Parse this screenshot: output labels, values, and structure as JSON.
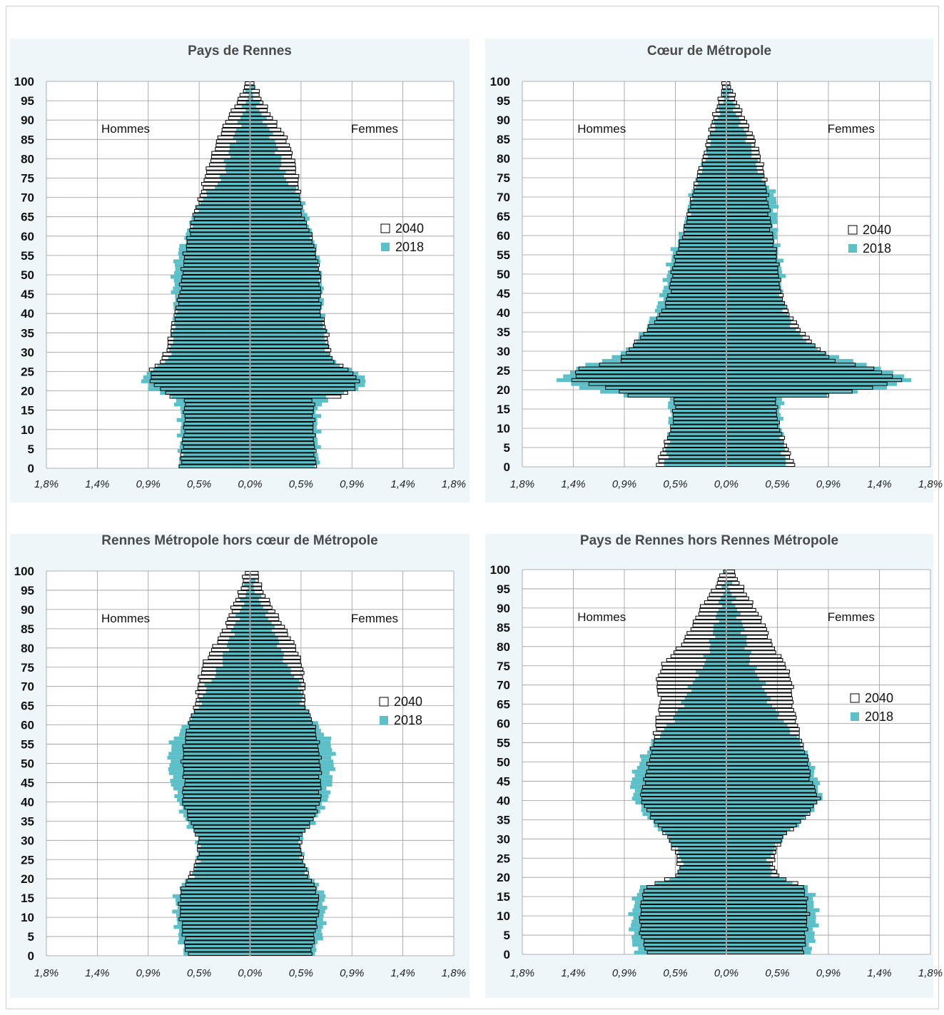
{
  "colors": {
    "series_2018": "#5bc0c8",
    "series_2040_fill": "#ffffff",
    "series_2040_stroke": "#000000",
    "panel_bg": "#eef6fa",
    "grid": "#9a9a9a",
    "axis_center": "#9a9a9a",
    "title": "#4a4a4a"
  },
  "chart_data": [
    {
      "type": "bar",
      "title": "Pays de Rennes",
      "left_label": "Hommes",
      "right_label": "Femmes",
      "legend": [
        "2040",
        "2018"
      ],
      "y_ticks": [
        "0",
        "5",
        "10",
        "15",
        "20",
        "25",
        "30",
        "35",
        "40",
        "45",
        "50",
        "55",
        "60",
        "65",
        "70",
        "75",
        "80",
        "85",
        "90",
        "95",
        "100"
      ],
      "x_ticks": [
        "1,8%",
        "1,4%",
        "0,9%",
        "0,5%",
        "0,0%",
        "0,5%",
        "0,9%",
        "1,4%",
        "1,8%"
      ],
      "xlim": [
        -1.8,
        1.8
      ],
      "ylim": [
        0,
        100
      ],
      "series": [
        {
          "name": "2018",
          "age": [
            0,
            10,
            15,
            18,
            20,
            22,
            25,
            27,
            30,
            35,
            40,
            45,
            50,
            55,
            60,
            65,
            70,
            72,
            75,
            80,
            85,
            90,
            95,
            100
          ],
          "male": [
            0.62,
            0.62,
            0.62,
            0.7,
            0.88,
            0.96,
            0.88,
            0.74,
            0.7,
            0.68,
            0.66,
            0.68,
            0.68,
            0.64,
            0.56,
            0.5,
            0.4,
            0.32,
            0.24,
            0.2,
            0.14,
            0.08,
            0.03,
            0.0
          ],
          "female": [
            0.6,
            0.6,
            0.6,
            0.7,
            0.95,
            1.05,
            0.9,
            0.74,
            0.68,
            0.66,
            0.64,
            0.64,
            0.62,
            0.6,
            0.54,
            0.5,
            0.44,
            0.38,
            0.3,
            0.26,
            0.2,
            0.12,
            0.04,
            0.0
          ]
        },
        {
          "name": "2040",
          "age": [
            0,
            10,
            15,
            17,
            18,
            20,
            22,
            25,
            27,
            30,
            35,
            40,
            45,
            50,
            55,
            60,
            65,
            70,
            75,
            80,
            85,
            90,
            95,
            100
          ],
          "male": [
            0.62,
            0.58,
            0.58,
            0.58,
            0.7,
            0.8,
            0.88,
            0.88,
            0.8,
            0.74,
            0.7,
            0.66,
            0.62,
            0.6,
            0.58,
            0.54,
            0.5,
            0.44,
            0.4,
            0.34,
            0.28,
            0.2,
            0.1,
            0.02
          ],
          "female": [
            0.58,
            0.56,
            0.56,
            0.56,
            0.8,
            0.92,
            0.96,
            0.88,
            0.74,
            0.7,
            0.68,
            0.62,
            0.62,
            0.62,
            0.58,
            0.54,
            0.46,
            0.44,
            0.42,
            0.38,
            0.32,
            0.2,
            0.1,
            0.02
          ]
        }
      ]
    },
    {
      "type": "bar",
      "title": "Cœur de Métropole",
      "left_label": "Hommes",
      "right_label": "Femmes",
      "legend": [
        "2040",
        "2018"
      ],
      "y_ticks": [
        "0",
        "5",
        "10",
        "15",
        "20",
        "25",
        "30",
        "35",
        "40",
        "45",
        "50",
        "55",
        "60",
        "65",
        "70",
        "75",
        "80",
        "85",
        "90",
        "95",
        "100"
      ],
      "x_ticks": [
        "1,8%",
        "1,4%",
        "0,9%",
        "0,5%",
        "0,0%",
        "0,5%",
        "0,9%",
        "1,4%",
        "1,8%"
      ],
      "xlim": [
        -1.8,
        1.8
      ],
      "ylim": [
        0,
        100
      ],
      "series": [
        {
          "name": "2018",
          "age": [
            0,
            10,
            15,
            17,
            18,
            20,
            22,
            25,
            27,
            30,
            35,
            40,
            45,
            50,
            55,
            60,
            65,
            70,
            72,
            75,
            80,
            85,
            90,
            95,
            100
          ],
          "male": [
            0.54,
            0.5,
            0.5,
            0.52,
            0.9,
            1.3,
            1.48,
            1.34,
            1.1,
            0.86,
            0.72,
            0.62,
            0.56,
            0.52,
            0.48,
            0.4,
            0.34,
            0.32,
            0.28,
            0.24,
            0.18,
            0.14,
            0.08,
            0.03,
            0.0
          ],
          "female": [
            0.52,
            0.48,
            0.48,
            0.5,
            0.9,
            1.4,
            1.64,
            1.38,
            1.1,
            0.8,
            0.6,
            0.52,
            0.48,
            0.5,
            0.46,
            0.44,
            0.44,
            0.44,
            0.38,
            0.3,
            0.24,
            0.18,
            0.1,
            0.04,
            0.0
          ]
        },
        {
          "name": "2040",
          "age": [
            0,
            10,
            15,
            17,
            18,
            20,
            22,
            25,
            27,
            30,
            35,
            40,
            45,
            50,
            55,
            60,
            65,
            70,
            75,
            80,
            85,
            90,
            95,
            100
          ],
          "male": [
            0.62,
            0.48,
            0.46,
            0.46,
            0.86,
            1.06,
            1.36,
            1.3,
            0.94,
            0.86,
            0.7,
            0.56,
            0.5,
            0.48,
            0.44,
            0.38,
            0.34,
            0.3,
            0.26,
            0.2,
            0.16,
            0.12,
            0.06,
            0.02
          ],
          "female": [
            0.6,
            0.46,
            0.44,
            0.44,
            0.9,
            1.3,
            1.54,
            1.3,
            0.96,
            0.82,
            0.66,
            0.54,
            0.48,
            0.46,
            0.44,
            0.4,
            0.38,
            0.36,
            0.34,
            0.3,
            0.24,
            0.16,
            0.08,
            0.02
          ]
        }
      ]
    },
    {
      "type": "bar",
      "title": "Rennes Métropole hors cœur de Métropole",
      "left_label": "Hommes",
      "right_label": "Femmes",
      "legend": [
        "2040",
        "2018"
      ],
      "y_ticks": [
        "0",
        "5",
        "10",
        "15",
        "20",
        "25",
        "30",
        "35",
        "40",
        "45",
        "50",
        "55",
        "60",
        "65",
        "70",
        "75",
        "80",
        "85",
        "90",
        "95",
        "100"
      ],
      "x_ticks": [
        "1,8%",
        "1,4%",
        "0,9%",
        "0,5%",
        "0,0%",
        "0,5%",
        "0,9%",
        "1,4%",
        "1,8%"
      ],
      "xlim": [
        -1.8,
        1.8
      ],
      "ylim": [
        0,
        100
      ],
      "series": [
        {
          "name": "2018",
          "age": [
            0,
            5,
            10,
            15,
            18,
            20,
            22,
            25,
            30,
            35,
            40,
            45,
            50,
            55,
            60,
            65,
            70,
            72,
            75,
            80,
            85,
            90,
            95,
            100
          ],
          "male": [
            0.58,
            0.64,
            0.66,
            0.66,
            0.6,
            0.52,
            0.48,
            0.46,
            0.46,
            0.58,
            0.64,
            0.7,
            0.72,
            0.7,
            0.56,
            0.44,
            0.38,
            0.32,
            0.26,
            0.2,
            0.14,
            0.08,
            0.03,
            0.0
          ],
          "female": [
            0.56,
            0.64,
            0.66,
            0.66,
            0.6,
            0.52,
            0.5,
            0.46,
            0.44,
            0.58,
            0.68,
            0.72,
            0.74,
            0.72,
            0.58,
            0.46,
            0.44,
            0.4,
            0.32,
            0.26,
            0.2,
            0.12,
            0.04,
            0.0
          ]
        },
        {
          "name": "2040",
          "age": [
            0,
            10,
            15,
            17,
            18,
            20,
            25,
            30,
            35,
            40,
            45,
            50,
            55,
            60,
            65,
            70,
            75,
            80,
            85,
            90,
            95,
            100
          ],
          "male": [
            0.56,
            0.62,
            0.62,
            0.6,
            0.58,
            0.54,
            0.46,
            0.46,
            0.54,
            0.6,
            0.58,
            0.6,
            0.58,
            0.54,
            0.48,
            0.46,
            0.42,
            0.32,
            0.22,
            0.16,
            0.08,
            0.04
          ],
          "female": [
            0.54,
            0.6,
            0.6,
            0.58,
            0.56,
            0.52,
            0.46,
            0.44,
            0.56,
            0.62,
            0.62,
            0.62,
            0.6,
            0.56,
            0.48,
            0.48,
            0.46,
            0.4,
            0.3,
            0.2,
            0.1,
            0.06
          ]
        }
      ]
    },
    {
      "type": "bar",
      "title": "Pays de Rennes hors Rennes Métropole",
      "left_label": "Hommes",
      "right_label": "Femmes",
      "legend": [
        "2040",
        "2018"
      ],
      "y_ticks": [
        "0",
        "5",
        "10",
        "15",
        "20",
        "25",
        "30",
        "35",
        "40",
        "45",
        "50",
        "55",
        "60",
        "65",
        "70",
        "75",
        "80",
        "85",
        "90",
        "95",
        "100"
      ],
      "x_ticks": [
        "1,8%",
        "1,4%",
        "0,9%",
        "0,5%",
        "0,0%",
        "0,5%",
        "0,9%",
        "1,4%",
        "1,8%"
      ],
      "xlim": [
        -1.8,
        1.8
      ],
      "ylim": [
        0,
        100
      ],
      "series": [
        {
          "name": "2018",
          "age": [
            0,
            5,
            10,
            15,
            17,
            18,
            20,
            22,
            25,
            30,
            35,
            40,
            45,
            50,
            55,
            60,
            65,
            70,
            72,
            75,
            80,
            85,
            90,
            95,
            100
          ],
          "male": [
            0.8,
            0.84,
            0.84,
            0.8,
            0.76,
            0.6,
            0.44,
            0.4,
            0.4,
            0.52,
            0.7,
            0.82,
            0.84,
            0.76,
            0.64,
            0.48,
            0.38,
            0.3,
            0.26,
            0.2,
            0.14,
            0.1,
            0.06,
            0.02,
            0.0
          ],
          "female": [
            0.74,
            0.78,
            0.8,
            0.76,
            0.72,
            0.58,
            0.42,
            0.38,
            0.38,
            0.5,
            0.7,
            0.84,
            0.8,
            0.74,
            0.64,
            0.5,
            0.38,
            0.32,
            0.28,
            0.22,
            0.18,
            0.14,
            0.08,
            0.03,
            0.0
          ]
        },
        {
          "name": "2040",
          "age": [
            0,
            5,
            10,
            15,
            17,
            18,
            20,
            22,
            25,
            30,
            35,
            40,
            45,
            50,
            55,
            60,
            65,
            70,
            75,
            80,
            85,
            90,
            95,
            100
          ],
          "male": [
            0.7,
            0.76,
            0.76,
            0.74,
            0.7,
            0.64,
            0.44,
            0.42,
            0.44,
            0.52,
            0.66,
            0.76,
            0.72,
            0.68,
            0.64,
            0.62,
            0.58,
            0.62,
            0.56,
            0.4,
            0.3,
            0.22,
            0.1,
            0.02
          ],
          "female": [
            0.68,
            0.7,
            0.72,
            0.7,
            0.68,
            0.62,
            0.46,
            0.42,
            0.42,
            0.5,
            0.7,
            0.82,
            0.74,
            0.72,
            0.66,
            0.62,
            0.58,
            0.58,
            0.52,
            0.4,
            0.34,
            0.24,
            0.14,
            0.04
          ]
        }
      ]
    }
  ]
}
